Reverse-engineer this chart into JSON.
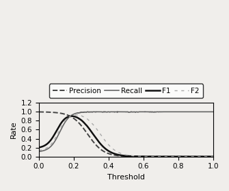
{
  "title": "",
  "xlabel": "Threshold",
  "ylabel": "Rate",
  "xlim": [
    0,
    1.0
  ],
  "ylim": [
    0,
    1.2
  ],
  "xticks": [
    0,
    0.2,
    0.4,
    0.6,
    0.8,
    1.0
  ],
  "yticks": [
    0,
    0.2,
    0.4,
    0.6,
    0.8,
    1.0,
    1.2
  ],
  "legend_labels": [
    "Precision",
    "Recall",
    "F1",
    "F2"
  ],
  "precision_color": "#444444",
  "recall_color": "#666666",
  "f1_color": "#111111",
  "f2_color": "#aaaaaa",
  "precision_style": "--",
  "recall_style": "-",
  "f1_style": "-",
  "f2_style": "-.",
  "precision_lw": 1.4,
  "recall_lw": 1.2,
  "f1_lw": 1.8,
  "f2_lw": 1.0,
  "background_color": "#f0eeeb"
}
